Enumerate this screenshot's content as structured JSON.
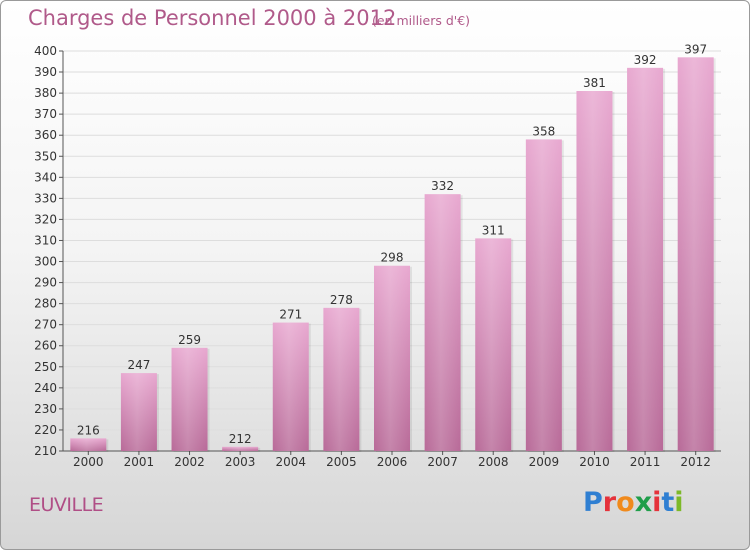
{
  "header": {
    "title": "Charges de Personnel 2000 à 2012",
    "subtitle": "(en milliers d'€)"
  },
  "footer": {
    "commune": "EUVILLE",
    "logo_text": "Proxiti"
  },
  "colors": {
    "bar_top": "#e8a8d0",
    "bar_bottom": "#b86a98",
    "text_accent": "#b05a8a",
    "grid": "#dddddd"
  },
  "chart_data": {
    "type": "bar",
    "title": "Charges de Personnel 2000 à 2012",
    "subtitle": "(en milliers d'€)",
    "xlabel": "",
    "ylabel": "",
    "categories": [
      "2000",
      "2001",
      "2002",
      "2003",
      "2004",
      "2005",
      "2006",
      "2007",
      "2008",
      "2009",
      "2010",
      "2011",
      "2012"
    ],
    "values": [
      216,
      247,
      259,
      212,
      271,
      278,
      298,
      332,
      311,
      358,
      381,
      392,
      397
    ],
    "ylim": [
      210,
      400
    ],
    "ytick_step": 10,
    "grid": true,
    "data_labels": true
  }
}
